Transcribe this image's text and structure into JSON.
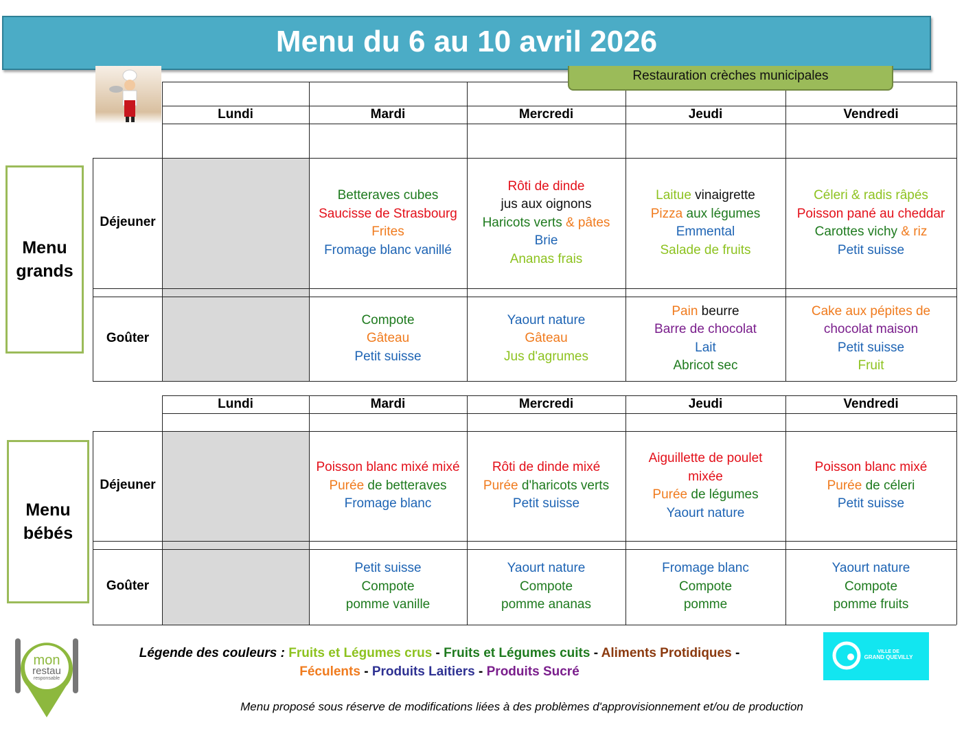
{
  "title": "Menu du 6 au 10 avril 2026",
  "subtitle": "Restauration crèches municipales",
  "colors": {
    "raw": "#8DC21F",
    "cooked": "#1E7A1E",
    "protein": "#E3101A",
    "starch": "#F07B1E",
    "dairy": "#1E64B4",
    "sugar": "#7A1E8C",
    "plain": "#111111",
    "legend_protein": "#8B3A0F",
    "legend_dairy": "#2E3192",
    "banner": "#4BACC6",
    "accent_green": "#9BBB59"
  },
  "days": [
    "Lundi",
    "Mardi",
    "Mercredi",
    "Jeudi",
    "Vendredi"
  ],
  "sections": [
    {
      "label": "Menu grands",
      "rows": [
        {
          "label": "Déjeuner",
          "cells": [
            [],
            [
              [
                [
                  "Betteraves cubes",
                  "cooked"
                ]
              ],
              [
                [
                  "Saucisse de Strasbourg",
                  "protein"
                ]
              ],
              [
                [
                  "Frites",
                  "starch"
                ]
              ],
              [
                [
                  "Fromage blanc vanillé",
                  "dairy"
                ]
              ]
            ],
            [
              [
                [
                  "Rôti de dinde",
                  "protein"
                ]
              ],
              [
                [
                  "jus aux oignons",
                  "plain"
                ]
              ],
              [
                [
                  "Haricots verts",
                  "cooked"
                ],
                [
                  " & pâtes",
                  "starch"
                ]
              ],
              [
                [
                  "Brie",
                  "dairy"
                ]
              ],
              [
                [
                  "Ananas frais",
                  "raw"
                ]
              ]
            ],
            [
              [
                [
                  "Laitue",
                  "raw"
                ],
                [
                  " vinaigrette",
                  "plain"
                ]
              ],
              [
                [
                  "Pizza",
                  "starch"
                ],
                [
                  " aux légumes",
                  "cooked"
                ]
              ],
              [
                [
                  "Emmental",
                  "dairy"
                ]
              ],
              [
                [
                  "Salade de fruits",
                  "raw"
                ]
              ]
            ],
            [
              [
                [
                  "Céleri & radis râpés",
                  "raw"
                ]
              ],
              [
                [
                  "Poisson pané au cheddar",
                  "protein"
                ]
              ],
              [
                [
                  "Carottes vichy",
                  "cooked"
                ],
                [
                  " & riz",
                  "starch"
                ]
              ],
              [
                [
                  "Petit suisse",
                  "dairy"
                ]
              ]
            ]
          ]
        },
        {
          "label": "Goûter",
          "cells": [
            [],
            [
              [
                [
                  "Compote",
                  "cooked"
                ]
              ],
              [
                [
                  "Gâteau",
                  "starch"
                ]
              ],
              [
                [
                  "Petit suisse",
                  "dairy"
                ]
              ]
            ],
            [
              [
                [
                  "Yaourt nature",
                  "dairy"
                ]
              ],
              [
                [
                  "Gâteau",
                  "starch"
                ]
              ],
              [
                [
                  "Jus d'agrumes",
                  "raw"
                ]
              ]
            ],
            [
              [
                [
                  "Pain",
                  "starch"
                ],
                [
                  " beurre",
                  "plain"
                ]
              ],
              [
                [
                  "Barre de chocolat",
                  "sugar"
                ]
              ],
              [
                [
                  "Lait",
                  "dairy"
                ]
              ],
              [
                [
                  "Abricot sec",
                  "cooked"
                ]
              ]
            ],
            [
              [
                [
                  "Cake aux pépites de",
                  "starch"
                ]
              ],
              [
                [
                  "chocolat maison",
                  "sugar"
                ]
              ],
              [
                [
                  "Petit suisse",
                  "dairy"
                ]
              ],
              [
                [
                  "Fruit",
                  "raw"
                ]
              ]
            ]
          ]
        }
      ]
    },
    {
      "label": "Menu bébés",
      "rows": [
        {
          "label": "Déjeuner",
          "cells": [
            [],
            [
              [
                [
                  "Poisson blanc mixé mixé",
                  "protein"
                ]
              ],
              [
                [
                  "Purée",
                  "starch"
                ],
                [
                  " de betteraves",
                  "cooked"
                ]
              ],
              [
                [
                  "Fromage blanc",
                  "dairy"
                ]
              ]
            ],
            [
              [
                [
                  "Rôti de dinde mixé",
                  "protein"
                ]
              ],
              [
                [
                  "Purée",
                  "starch"
                ],
                [
                  " d'haricots verts",
                  "cooked"
                ]
              ],
              [
                [
                  "Petit suisse",
                  "dairy"
                ]
              ]
            ],
            [
              [
                [
                  "Aiguillette de poulet",
                  "protein"
                ]
              ],
              [
                [
                  "mixée",
                  "protein"
                ]
              ],
              [
                [
                  "Purée",
                  "starch"
                ],
                [
                  " de légumes",
                  "cooked"
                ]
              ],
              [
                [
                  "Yaourt nature",
                  "dairy"
                ]
              ]
            ],
            [
              [
                [
                  "Poisson blanc mixé",
                  "protein"
                ]
              ],
              [
                [
                  "Purée",
                  "starch"
                ],
                [
                  " de céleri",
                  "cooked"
                ]
              ],
              [
                [
                  "Petit suisse",
                  "dairy"
                ]
              ]
            ]
          ]
        },
        {
          "label": "Goûter",
          "cells": [
            [],
            [
              [
                [
                  "Petit suisse",
                  "dairy"
                ]
              ],
              [
                [
                  "Compote",
                  "cooked"
                ]
              ],
              [
                [
                  "pomme vanille",
                  "cooked"
                ]
              ]
            ],
            [
              [
                [
                  "Yaourt nature",
                  "dairy"
                ]
              ],
              [
                [
                  "Compote",
                  "cooked"
                ]
              ],
              [
                [
                  "pomme ananas",
                  "cooked"
                ]
              ]
            ],
            [
              [
                [
                  "Fromage blanc",
                  "dairy"
                ]
              ],
              [
                [
                  "Compote",
                  "cooked"
                ]
              ],
              [
                [
                  "pomme",
                  "cooked"
                ]
              ]
            ],
            [
              [
                [
                  "Yaourt nature",
                  "dairy"
                ]
              ],
              [
                [
                  "Compote",
                  "cooked"
                ]
              ],
              [
                [
                  "pomme fruits",
                  "cooked"
                ]
              ]
            ]
          ]
        }
      ]
    }
  ],
  "legend": {
    "prefix": "Légende des couleurs : ",
    "items": [
      {
        "label": "Fruits et Légumes crus",
        "color": "#8DC21F"
      },
      {
        "label": "Fruits et Légumes cuits",
        "color": "#1E7A1E"
      },
      {
        "label": "Aliments Protidiques",
        "color": "#8B3A0F"
      },
      {
        "label": "Féculents",
        "color": "#F07B1E"
      },
      {
        "label": "Produits Laitiers",
        "color": "#2E3192"
      },
      {
        "label": "Produits Sucré",
        "color": "#7A1E8C"
      }
    ]
  },
  "note": "Menu proposé sous réserve de modifications liées à des problèmes d'approvisionnement et/ou de production",
  "logos": {
    "left": "mon restau responsable",
    "right": "VILLE DE GRAND QUEVILLY"
  }
}
